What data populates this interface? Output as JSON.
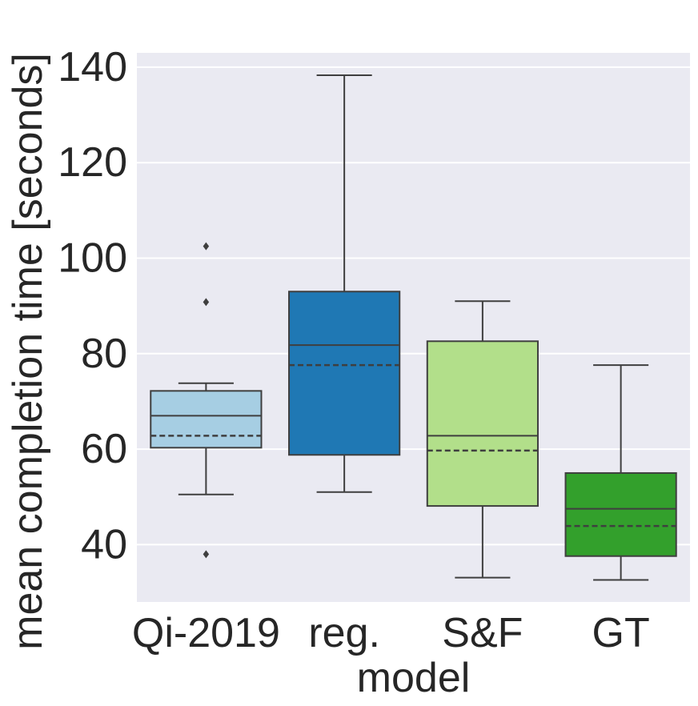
{
  "chart_data": {
    "type": "box",
    "title": "",
    "xlabel": "model",
    "ylabel": "mean completion time [seconds]",
    "ylim": [
      28,
      143
    ],
    "yticks": [
      40,
      60,
      80,
      100,
      120,
      140
    ],
    "grid": true,
    "categories": [
      "Qi-2019",
      "reg.",
      "S&F",
      "GT"
    ],
    "boxes": [
      {
        "name": "Qi-2019",
        "color": "#a6cee3",
        "whisker_low": 50.5,
        "q1": 60.3,
        "median": 67.0,
        "mean": 62.8,
        "q3": 72.2,
        "whisker_high": 73.8,
        "outliers": [
          102.5,
          90.8,
          38.0
        ]
      },
      {
        "name": "reg.",
        "color": "#1f78b4",
        "whisker_low": 51.0,
        "q1": 58.8,
        "median": 81.8,
        "mean": 77.6,
        "q3": 93.0,
        "whisker_high": 138.3,
        "outliers": []
      },
      {
        "name": "S&F",
        "color": "#b2df8a",
        "whisker_low": 33.1,
        "q1": 48.1,
        "median": 62.8,
        "mean": 59.7,
        "q3": 82.6,
        "whisker_high": 91.0,
        "outliers": []
      },
      {
        "name": "GT",
        "color": "#33a02c",
        "whisker_low": 32.6,
        "q1": 37.6,
        "median": 47.5,
        "mean": 43.9,
        "q3": 55.0,
        "whisker_high": 77.6,
        "outliers": []
      }
    ],
    "line_color": "#3f3f3f",
    "background_color": "#eaeaf2",
    "grid_color": "#ffffff"
  }
}
